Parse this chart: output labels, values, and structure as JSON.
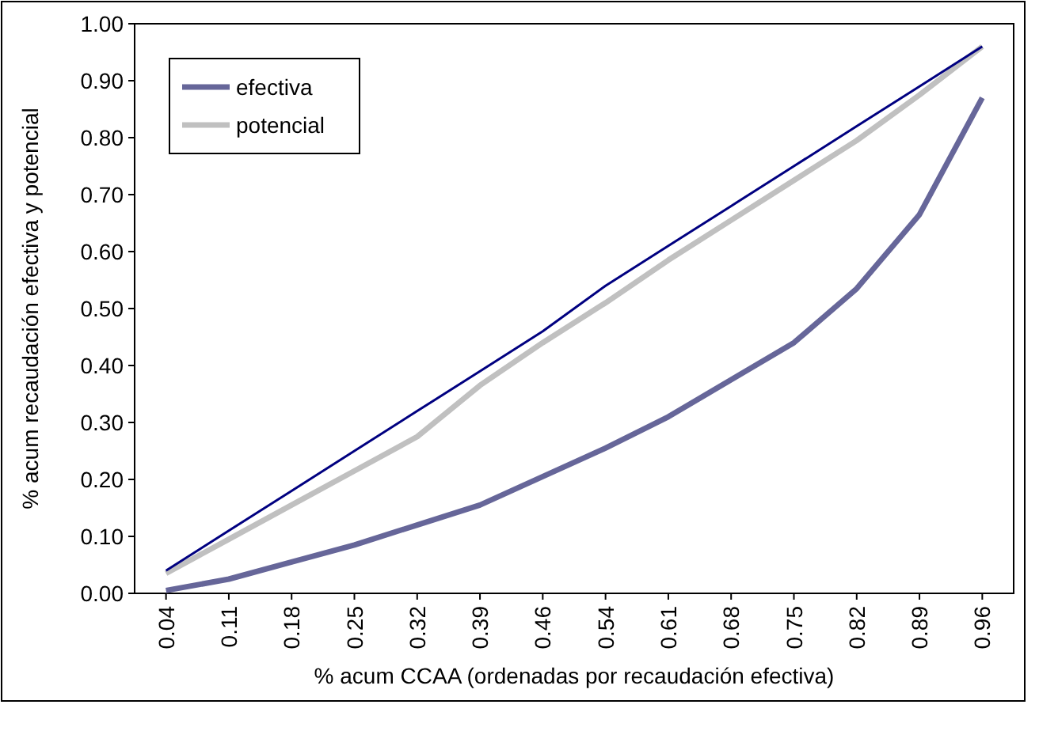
{
  "chart_data": {
    "type": "line",
    "xlabel": "% acum CCAA (ordenadas por recaudación efectiva)",
    "ylabel": "% acum recaudación efectiva y potencial",
    "categories": [
      "0.04",
      "0.11",
      "0.18",
      "0.25",
      "0.32",
      "0.39",
      "0.46",
      "0.54",
      "0.61",
      "0.68",
      "0.75",
      "0.82",
      "0.89",
      "0.96"
    ],
    "series": [
      {
        "color": "#000080",
        "values": [
          0.04,
          0.11,
          0.18,
          0.25,
          0.32,
          0.39,
          0.46,
          0.54,
          0.61,
          0.68,
          0.75,
          0.82,
          0.89,
          0.96
        ]
      },
      {
        "name": "efectiva",
        "color": "#666699",
        "values": [
          0.005,
          0.025,
          0.055,
          0.085,
          0.12,
          0.155,
          0.205,
          0.255,
          0.31,
          0.375,
          0.44,
          0.535,
          0.665,
          0.87
        ]
      },
      {
        "name": "potencial",
        "color": "#c0c0c0",
        "values": [
          0.035,
          0.095,
          0.155,
          0.215,
          0.275,
          0.365,
          0.44,
          0.51,
          0.585,
          0.655,
          0.725,
          0.795,
          0.875,
          0.96
        ]
      }
    ],
    "ylim": [
      0,
      1
    ],
    "yticks": [
      {
        "value": 0,
        "label": "0.00"
      },
      {
        "value": 0.1,
        "label": "0.10"
      },
      {
        "value": 0.2,
        "label": "0.20"
      },
      {
        "value": 0.3,
        "label": "0.30"
      },
      {
        "value": 0.4,
        "label": "0.40"
      },
      {
        "value": 0.5,
        "label": "0.50"
      },
      {
        "value": 0.6,
        "label": "0.60"
      },
      {
        "value": 0.7,
        "label": "0.70"
      },
      {
        "value": 0.8,
        "label": "0.80"
      },
      {
        "value": 0.9,
        "label": "0.90"
      },
      {
        "value": 1,
        "label": "1.00"
      }
    ],
    "legend": "top left",
    "grid": false,
    "marker": "none"
  }
}
